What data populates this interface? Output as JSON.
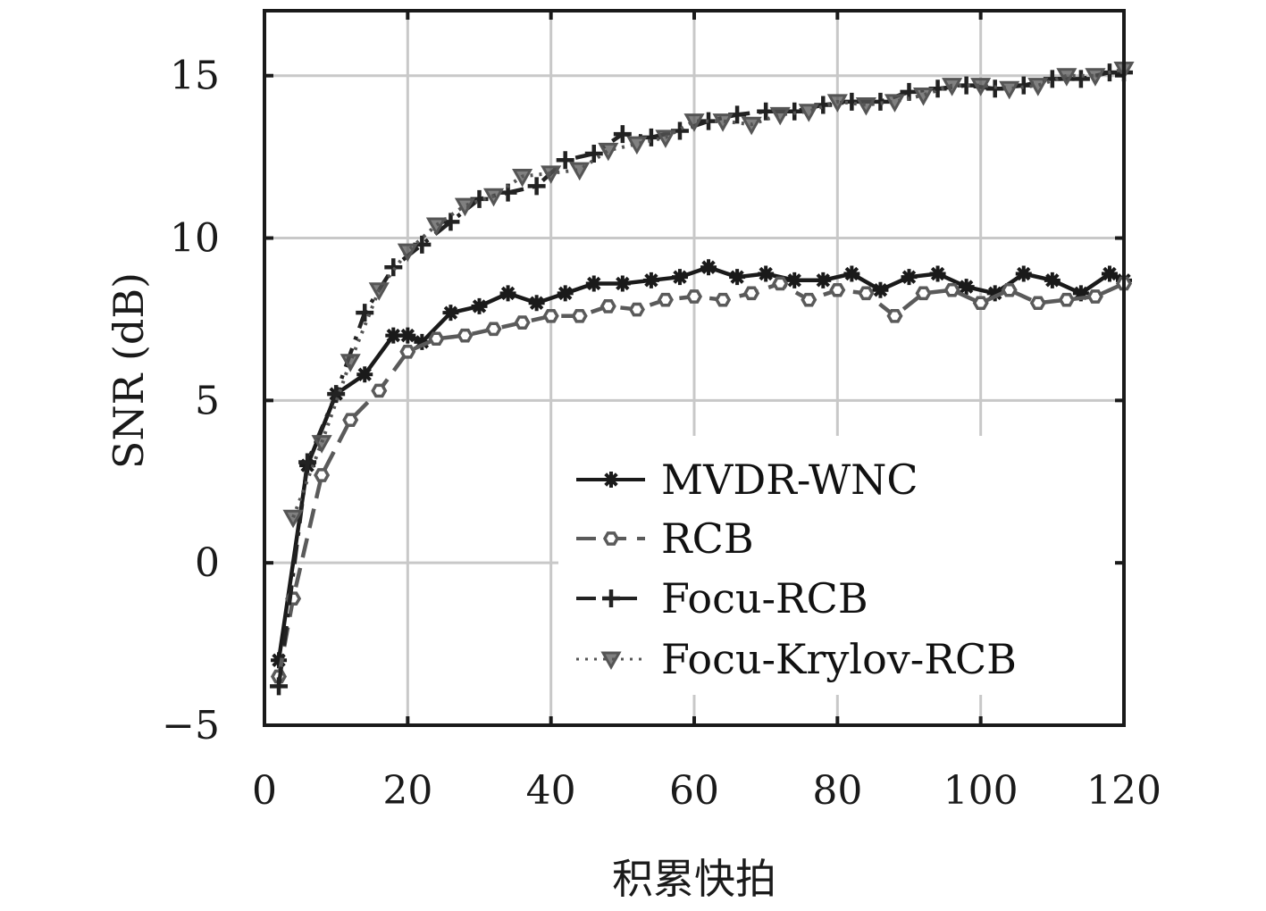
{
  "chart_data": {
    "type": "line",
    "title": "",
    "xlabel": "积累快拍",
    "ylabel": "SNR (dB)",
    "xlim": [
      0,
      120
    ],
    "ylim": [
      -5,
      17
    ],
    "xticks": [
      "0",
      "20",
      "40",
      "60",
      "80",
      "100",
      "120"
    ],
    "yticks": [
      "−5",
      "0",
      "5",
      "10",
      "15"
    ],
    "grid": true,
    "legend_position": "lower-right",
    "series": [
      {
        "name": "MVDR-WNC",
        "color": "#1a1a1a",
        "dash": "solid",
        "marker": "asterisk",
        "x": [
          2,
          6,
          10,
          14,
          18,
          20,
          22,
          26,
          30,
          34,
          38,
          42,
          46,
          50,
          54,
          58,
          62,
          66,
          70,
          74,
          78,
          82,
          86,
          90,
          94,
          98,
          102,
          106,
          110,
          114,
          118,
          120
        ],
        "y": [
          -3.0,
          3.0,
          5.2,
          5.8,
          7.0,
          7.0,
          6.8,
          7.7,
          7.9,
          8.3,
          8.0,
          8.3,
          8.6,
          8.6,
          8.7,
          8.8,
          9.1,
          8.8,
          8.9,
          8.7,
          8.7,
          8.9,
          8.4,
          8.8,
          8.9,
          8.5,
          8.3,
          8.9,
          8.7,
          8.3,
          8.9,
          8.7
        ]
      },
      {
        "name": "RCB",
        "color": "#5a5a5a",
        "dash": "dash",
        "marker": "hexagon",
        "x": [
          2,
          4,
          8,
          12,
          16,
          20,
          24,
          28,
          32,
          36,
          40,
          44,
          48,
          52,
          56,
          60,
          64,
          68,
          72,
          76,
          80,
          84,
          88,
          92,
          96,
          100,
          104,
          108,
          112,
          116,
          120
        ],
        "y": [
          -3.5,
          -1.1,
          2.7,
          4.4,
          5.3,
          6.5,
          6.9,
          7.0,
          7.2,
          7.4,
          7.6,
          7.6,
          7.9,
          7.8,
          8.1,
          8.2,
          8.1,
          8.3,
          8.6,
          8.1,
          8.4,
          8.3,
          7.6,
          8.3,
          8.4,
          8.0,
          8.4,
          8.0,
          8.1,
          8.2,
          8.6
        ]
      },
      {
        "name": "Focu-RCB",
        "color": "#222222",
        "dash": "dashdot",
        "marker": "plus",
        "x": [
          2,
          6,
          10,
          14,
          18,
          22,
          26,
          30,
          34,
          38,
          42,
          46,
          50,
          54,
          58,
          62,
          66,
          70,
          74,
          78,
          82,
          86,
          90,
          94,
          98,
          102,
          106,
          110,
          114,
          118,
          120
        ],
        "y": [
          -3.8,
          3.1,
          5.2,
          7.7,
          9.1,
          9.8,
          10.5,
          11.2,
          11.4,
          11.6,
          12.4,
          12.6,
          13.2,
          13.1,
          13.3,
          13.6,
          13.8,
          13.9,
          13.9,
          14.1,
          14.2,
          14.2,
          14.5,
          14.6,
          14.7,
          14.6,
          14.7,
          14.9,
          14.9,
          15.1,
          15.1
        ]
      },
      {
        "name": "Focu-Krylov-RCB",
        "color": "#555555",
        "dash": "dotted",
        "marker": "triangle-down",
        "x": [
          4,
          8,
          12,
          16,
          20,
          24,
          28,
          32,
          36,
          40,
          44,
          48,
          52,
          56,
          60,
          64,
          68,
          72,
          76,
          80,
          84,
          88,
          92,
          96,
          100,
          104,
          108,
          112,
          116,
          120
        ],
        "y": [
          1.4,
          3.7,
          6.2,
          8.4,
          9.6,
          10.4,
          11.0,
          11.3,
          11.9,
          12.0,
          12.1,
          12.7,
          12.9,
          13.1,
          13.6,
          13.6,
          13.5,
          13.8,
          13.9,
          14.2,
          14.1,
          14.2,
          14.4,
          14.7,
          14.7,
          14.6,
          14.7,
          15.0,
          15.0,
          15.2
        ]
      }
    ]
  }
}
